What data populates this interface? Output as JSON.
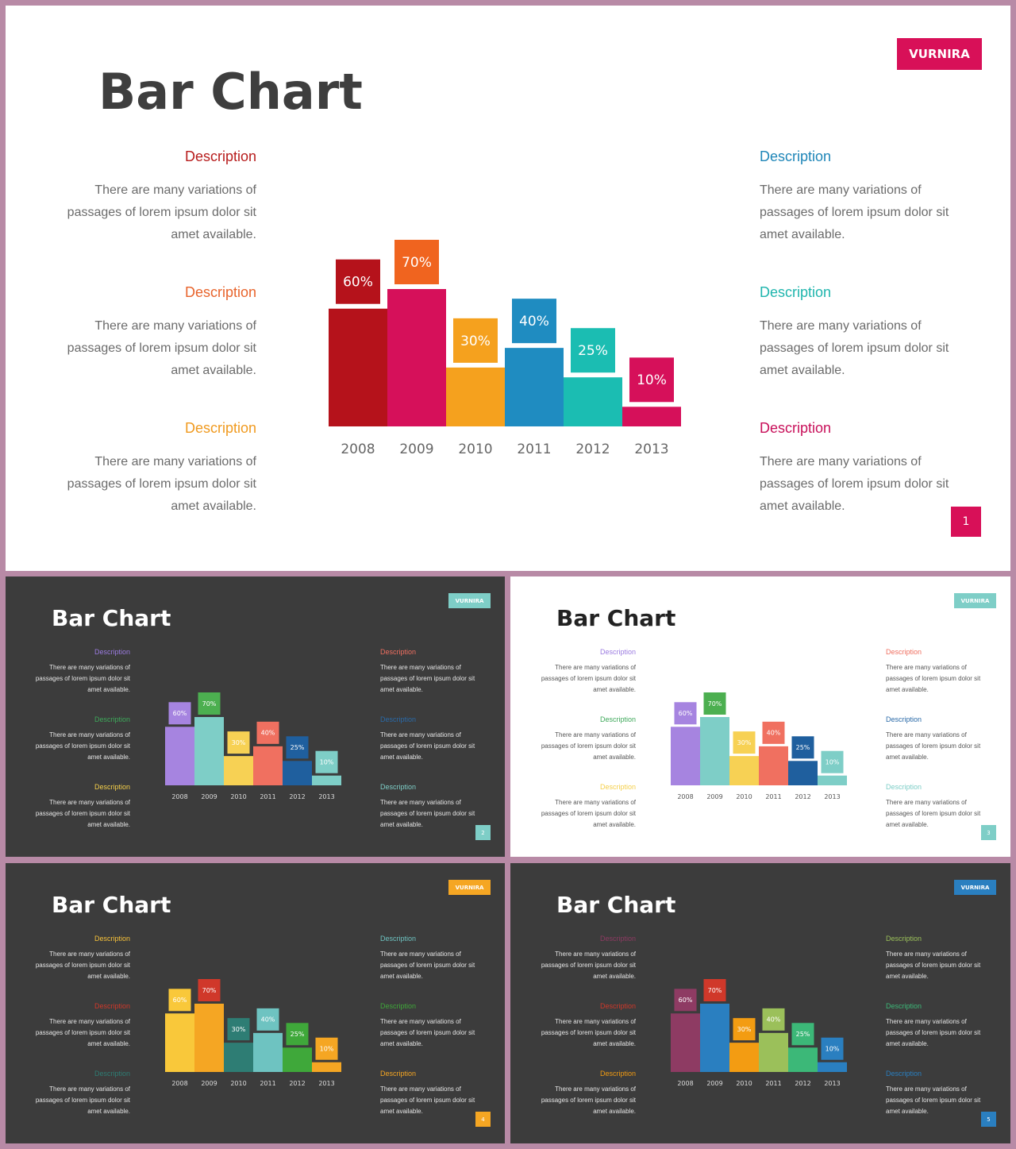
{
  "slides": [
    {
      "bg": "#ffffff",
      "title": "Bar Chart",
      "title_color": "#3e3e3e",
      "brand": "VURNIRA",
      "brand_color": "#d81058",
      "page": "1",
      "page_color": "#d81058",
      "text_color": "#6b6b6b",
      "desc_left": [
        {
          "title": "Description",
          "color": "#b71c1c",
          "text": "There are many variations of\npassages of lorem ipsum dolor sit\namet available."
        },
        {
          "title": "Description",
          "color": "#e8642c",
          "text": "There are many variations of\npassages of lorem ipsum dolor sit\namet available."
        },
        {
          "title": "Description",
          "color": "#f09a1f",
          "text": "There are many variations of\npassages of lorem ipsum dolor sit\namet available."
        }
      ],
      "desc_right": [
        {
          "title": "Description",
          "color": "#1f86b8",
          "text": "There are many variations of\npassages of lorem ipsum dolor sit\namet available."
        },
        {
          "title": "Description",
          "color": "#1fb5ad",
          "text": "There are many variations of\npassages of lorem ipsum dolor sit\namet available."
        },
        {
          "title": "Description",
          "color": "#c8105a",
          "text": "There are many variations of\npassages of lorem ipsum dolor sit\namet available."
        }
      ],
      "chart_data": {
        "type": "bar",
        "categories": [
          "2008",
          "2009",
          "2010",
          "2011",
          "2012",
          "2013"
        ],
        "values": [
          60,
          70,
          30,
          40,
          25,
          10
        ],
        "labels": [
          "60%",
          "70%",
          "30%",
          "40%",
          "25%",
          "10%"
        ],
        "bar_colors": [
          "#b5121b",
          "#d6105a",
          "#f5a11e",
          "#1f8cc1",
          "#1bbdb2",
          "#d6105a"
        ],
        "label_colors": [
          "#b5121b",
          "#f0641f",
          "#f5a11e",
          "#1f8cc1",
          "#1bbdb2",
          "#d6105a"
        ],
        "tick_color": "#666666"
      }
    },
    {
      "bg": "#3c3c3c",
      "title": "Bar Chart",
      "title_color": "#ffffff",
      "brand": "VURNIRA",
      "brand_color": "#7ecec7",
      "page": "2",
      "page_color": "#7ecec7",
      "text_color": "#e6e6e6",
      "desc_left": [
        {
          "title": "Description",
          "color": "#9b7be0",
          "text": "There are many variations of\npassages of lorem ipsum dolor sit\namet available."
        },
        {
          "title": "Description",
          "color": "#3ea85a",
          "text": "There are many variations of\npassages of lorem ipsum dolor sit\namet available."
        },
        {
          "title": "Description",
          "color": "#f5cf4a",
          "text": "There are many variations of\npassages of lorem ipsum dolor sit\namet available."
        }
      ],
      "desc_right": [
        {
          "title": "Description",
          "color": "#ef6f60",
          "text": "There are many variations of\npassages of lorem ipsum dolor sit\namet available."
        },
        {
          "title": "Description",
          "color": "#2a6aa8",
          "text": "There are many variations of\npassages of lorem ipsum dolor sit\namet available."
        },
        {
          "title": "Description",
          "color": "#7ecec7",
          "text": "There are many variations of\npassages of lorem ipsum dolor sit\namet available."
        }
      ],
      "chart_data": {
        "type": "bar",
        "categories": [
          "2008",
          "2009",
          "2010",
          "2011",
          "2012",
          "2013"
        ],
        "values": [
          60,
          70,
          30,
          40,
          25,
          10
        ],
        "labels": [
          "60%",
          "70%",
          "30%",
          "40%",
          "25%",
          "10%"
        ],
        "bar_colors": [
          "#a684e0",
          "#7ecec7",
          "#f7d154",
          "#f07060",
          "#1f5f9e",
          "#7ecec7"
        ],
        "label_colors": [
          "#a684e0",
          "#4caf50",
          "#f7d154",
          "#f07060",
          "#1f5f9e",
          "#7ecec7"
        ],
        "tick_color": "#dddddd"
      }
    },
    {
      "bg": "#ffffff",
      "title": "Bar Chart",
      "title_color": "#222222",
      "brand": "VURNIRA",
      "brand_color": "#7ecec7",
      "page": "3",
      "page_color": "#7ecec7",
      "text_color": "#555555",
      "desc_left": [
        {
          "title": "Description",
          "color": "#9b7be0",
          "text": "There are many variations of\npassages of lorem ipsum dolor sit\namet available."
        },
        {
          "title": "Description",
          "color": "#3ea85a",
          "text": "There are many variations of\npassages of lorem ipsum dolor sit\namet available."
        },
        {
          "title": "Description",
          "color": "#f5cf4a",
          "text": "There are many variations of\npassages of lorem ipsum dolor sit\namet available."
        }
      ],
      "desc_right": [
        {
          "title": "Description",
          "color": "#ef6f60",
          "text": "There are many variations of\npassages of lorem ipsum dolor sit\namet available."
        },
        {
          "title": "Description",
          "color": "#2a6aa8",
          "text": "There are many variations of\npassages of lorem ipsum dolor sit\namet available."
        },
        {
          "title": "Description",
          "color": "#7ecec7",
          "text": "There are many variations of\npassages of lorem ipsum dolor sit\namet available."
        }
      ],
      "chart_data": {
        "type": "bar",
        "categories": [
          "2008",
          "2009",
          "2010",
          "2011",
          "2012",
          "2013"
        ],
        "values": [
          60,
          70,
          30,
          40,
          25,
          10
        ],
        "labels": [
          "60%",
          "70%",
          "30%",
          "40%",
          "25%",
          "10%"
        ],
        "bar_colors": [
          "#a684e0",
          "#7ecec7",
          "#f7d154",
          "#f07060",
          "#1f5f9e",
          "#7ecec7"
        ],
        "label_colors": [
          "#a684e0",
          "#4caf50",
          "#f7d154",
          "#f07060",
          "#1f5f9e",
          "#7ecec7"
        ],
        "tick_color": "#555555"
      }
    },
    {
      "bg": "#3c3c3c",
      "title": "Bar Chart",
      "title_color": "#ffffff",
      "brand": "VURNIRA",
      "brand_color": "#f5a623",
      "page": "4",
      "page_color": "#f5a623",
      "text_color": "#e6e6e6",
      "desc_left": [
        {
          "title": "Description",
          "color": "#f7c23a",
          "text": "There are many variations of\npassages of lorem ipsum dolor sit\namet available."
        },
        {
          "title": "Description",
          "color": "#d0382a",
          "text": "There are many variations of\npassages of lorem ipsum dolor sit\namet available."
        },
        {
          "title": "Description",
          "color": "#2e7d74",
          "text": "There are many variations of\npassages of lorem ipsum dolor sit\namet available."
        }
      ],
      "desc_right": [
        {
          "title": "Description",
          "color": "#6ec3c1",
          "text": "There are many variations of\npassages of lorem ipsum dolor sit\namet available."
        },
        {
          "title": "Description",
          "color": "#3fa83a",
          "text": "There are many variations of\npassages of lorem ipsum dolor sit\namet available."
        },
        {
          "title": "Description",
          "color": "#f5a623",
          "text": "There are many variations of\npassages of lorem ipsum dolor sit\namet available."
        }
      ],
      "chart_data": {
        "type": "bar",
        "categories": [
          "2008",
          "2009",
          "2010",
          "2011",
          "2012",
          "2013"
        ],
        "values": [
          60,
          70,
          30,
          40,
          25,
          10
        ],
        "labels": [
          "60%",
          "70%",
          "30%",
          "40%",
          "25%",
          "10%"
        ],
        "bar_colors": [
          "#f9c83a",
          "#f5a623",
          "#2e7d74",
          "#6ec3c1",
          "#3fa83a",
          "#f5a623"
        ],
        "label_colors": [
          "#f9c83a",
          "#d0382a",
          "#2e7d74",
          "#6ec3c1",
          "#3fa83a",
          "#f5a623"
        ],
        "tick_color": "#dddddd"
      }
    },
    {
      "bg": "#3c3c3c",
      "title": "Bar Chart",
      "title_color": "#ffffff",
      "brand": "VURNIRA",
      "brand_color": "#2a7fc0",
      "page": "5",
      "page_color": "#2a7fc0",
      "text_color": "#e6e6e6",
      "desc_left": [
        {
          "title": "Description",
          "color": "#8e3b63",
          "text": "There are many variations of\npassages of lorem ipsum dolor sit\namet available."
        },
        {
          "title": "Description",
          "color": "#d0382a",
          "text": "There are many variations of\npassages of lorem ipsum dolor sit\namet available."
        },
        {
          "title": "Description",
          "color": "#f39c12",
          "text": "There are many variations of\npassages of lorem ipsum dolor sit\namet available."
        }
      ],
      "desc_right": [
        {
          "title": "Description",
          "color": "#9bc05a",
          "text": "There are many variations of\npassages of lorem ipsum dolor sit\namet available."
        },
        {
          "title": "Description",
          "color": "#3cb878",
          "text": "There are many variations of\npassages of lorem ipsum dolor sit\namet available."
        },
        {
          "title": "Description",
          "color": "#2a7fc0",
          "text": "There are many variations of\npassages of lorem ipsum dolor sit\namet available."
        }
      ],
      "chart_data": {
        "type": "bar",
        "categories": [
          "2008",
          "2009",
          "2010",
          "2011",
          "2012",
          "2013"
        ],
        "values": [
          60,
          70,
          30,
          40,
          25,
          10
        ],
        "labels": [
          "60%",
          "70%",
          "30%",
          "40%",
          "25%",
          "10%"
        ],
        "bar_colors": [
          "#8e3b63",
          "#2a7fc0",
          "#f39c12",
          "#9bc05a",
          "#3cb878",
          "#2a7fc0"
        ],
        "label_colors": [
          "#8e3b63",
          "#d0382a",
          "#f39c12",
          "#9bc05a",
          "#3cb878",
          "#2a7fc0"
        ],
        "tick_color": "#dddddd"
      }
    }
  ]
}
